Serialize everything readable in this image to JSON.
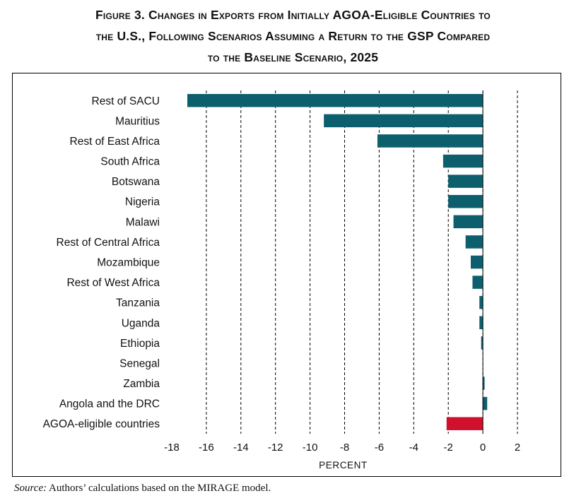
{
  "figure": {
    "title_lines": [
      "Figure 3. Changes in Exports from Initially AGOA-Eligible Countries to",
      "the U.S., Following Scenarios Assuming a Return to the GSP Compared",
      "to the Baseline Scenario, 2025"
    ],
    "source_label": "Source:",
    "source_text": " Authors’ calculations based on the MIRAGE model."
  },
  "colors": {
    "bar": "#0d5f6e",
    "highlight": "#d1102e",
    "grid": "#000000"
  },
  "chart_data": {
    "type": "bar",
    "orientation": "horizontal",
    "xlabel": "PERCENT",
    "ylabel": "",
    "xlim": [
      -18,
      2
    ],
    "xticks": [
      -18,
      -16,
      -14,
      -12,
      -10,
      -8,
      -6,
      -4,
      -2,
      0,
      2
    ],
    "grid": "vertical dashed",
    "categories": [
      "Rest of SACU",
      "Mauritius",
      "Rest of East Africa",
      "South Africa",
      "Botswana",
      "Nigeria",
      "Malawi",
      "Rest of Central Africa",
      "Mozambique",
      "Rest of West Africa",
      "Tanzania",
      "Uganda",
      "Ethiopia",
      "Senegal",
      "Zambia",
      "Angola and the DRC",
      "AGOA-eligible countries"
    ],
    "values": [
      -17.1,
      -9.2,
      -6.1,
      -2.3,
      -2.0,
      -2.0,
      -1.7,
      -1.0,
      -0.7,
      -0.6,
      -0.2,
      -0.2,
      -0.1,
      0.0,
      0.1,
      0.25,
      -2.1
    ],
    "highlighted_category": "AGOA-eligible countries"
  }
}
